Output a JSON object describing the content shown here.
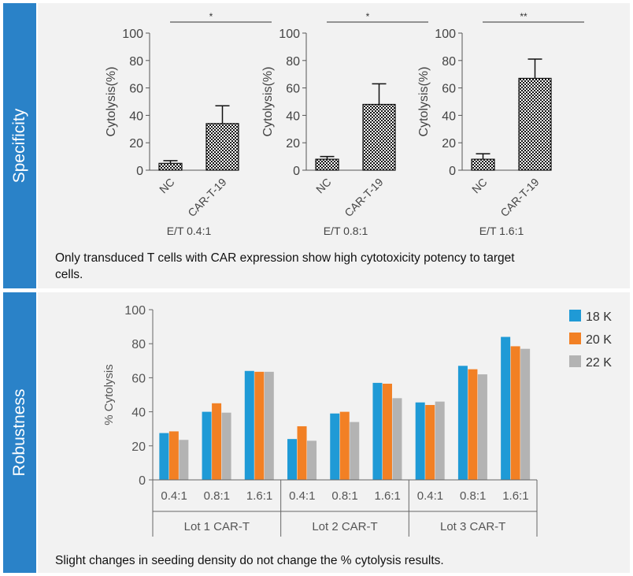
{
  "specificity": {
    "side_label": "Specificity",
    "caption": "Only transduced T cells with CAR expression show high cytotoxicity potency to target cells."
  },
  "robustness": {
    "side_label": "Robustness",
    "caption": "Slight changes in seeding density do not change the % cytolysis results."
  },
  "colors": {
    "sidebar": "#2a82c8",
    "panel": "#f2f2f2",
    "series_18k": "#1f9ad6",
    "series_20k": "#f28024",
    "series_22k": "#b3b3b3"
  },
  "chart_data": [
    {
      "type": "bar",
      "ylabel": "Cytolysis(%)",
      "ylim": [
        0,
        100
      ],
      "yticks": [
        0,
        20,
        40,
        60,
        80,
        100
      ],
      "categories": [
        "NC",
        "CAR-T-19"
      ],
      "values": [
        5,
        34
      ],
      "errors": [
        2,
        13
      ],
      "significance": "*",
      "xlabel": "E/T 0.4:1",
      "pattern": "checkered"
    },
    {
      "type": "bar",
      "ylabel": "Cytolysis(%)",
      "ylim": [
        0,
        100
      ],
      "yticks": [
        0,
        20,
        40,
        60,
        80,
        100
      ],
      "categories": [
        "NC",
        "CAR-T-19"
      ],
      "values": [
        8,
        48
      ],
      "errors": [
        2,
        15
      ],
      "significance": "*",
      "xlabel": "E/T 0.8:1",
      "pattern": "checkered"
    },
    {
      "type": "bar",
      "ylabel": "Cytolysis(%)",
      "ylim": [
        0,
        100
      ],
      "yticks": [
        0,
        20,
        40,
        60,
        80,
        100
      ],
      "categories": [
        "NC",
        "CAR-T-19"
      ],
      "values": [
        8,
        67
      ],
      "errors": [
        4,
        14
      ],
      "significance": "**",
      "xlabel": "E/T 1.6:1",
      "pattern": "checkered"
    },
    {
      "type": "bar",
      "ylabel": "% Cytolysis",
      "ylim": [
        0,
        100
      ],
      "yticks": [
        0,
        20,
        40,
        60,
        80,
        100
      ],
      "groups": [
        "Lot 1 CAR-T",
        "Lot 2 CAR-T",
        "Lot 3 CAR-T"
      ],
      "categories": [
        "0.4:1",
        "0.8:1",
        "1.6:1",
        "0.4:1",
        "0.8:1",
        "1.6:1",
        "0.4:1",
        "0.8:1",
        "1.6:1"
      ],
      "series": [
        {
          "name": "18 K",
          "color": "#1f9ad6",
          "values": [
            27.5,
            40,
            64,
            24,
            39,
            57,
            45.5,
            67,
            84
          ]
        },
        {
          "name": "20 K",
          "color": "#f28024",
          "values": [
            28.5,
            45,
            63.5,
            31.5,
            40,
            56.5,
            44,
            65,
            78.5
          ]
        },
        {
          "name": "22 K",
          "color": "#b3b3b3",
          "values": [
            23.5,
            39.5,
            63.5,
            23,
            34,
            48,
            46,
            62,
            77
          ]
        }
      ],
      "legend": "right"
    }
  ]
}
